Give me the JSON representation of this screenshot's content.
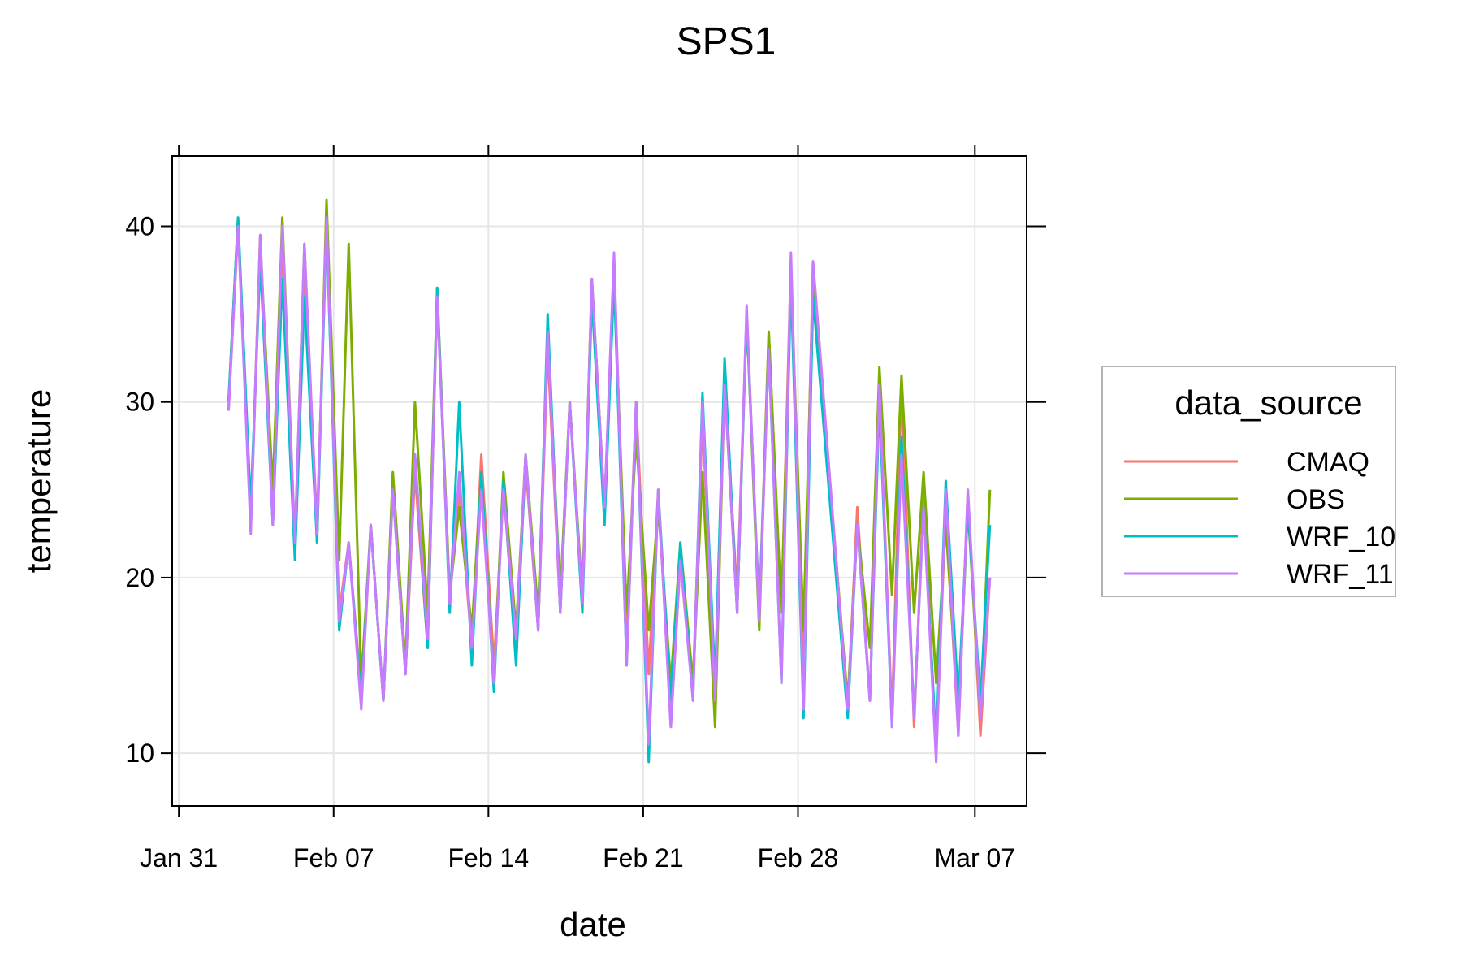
{
  "chart_data": {
    "type": "line",
    "title": "SPS1",
    "xlabel": "date",
    "ylabel": "temperature",
    "x_ticks": [
      "Jan 31",
      "Feb 07",
      "Feb 14",
      "Feb 21",
      "Feb 28",
      "Mar 07"
    ],
    "y_ticks": [
      10,
      20,
      30,
      40
    ],
    "ylim": [
      7,
      44
    ],
    "xlim": [
      "Jan 30",
      "Mar 09"
    ],
    "grid": true,
    "legend": {
      "title": "data_source",
      "placement": "right"
    },
    "series": [
      {
        "name": "CMAQ",
        "color": "#F8766D",
        "points": [
          [
            "Feb 02",
            29.5
          ],
          [
            "Feb 02",
            40
          ],
          [
            "Feb 03",
            23
          ],
          [
            "Feb 03",
            39.5
          ],
          [
            "Feb 04",
            23
          ],
          [
            "Feb 04",
            39
          ],
          [
            "Feb 05",
            22
          ],
          [
            "Feb 05",
            38
          ],
          [
            "Feb 06",
            23
          ],
          [
            "Feb 06",
            40
          ],
          [
            "Feb 07",
            18
          ],
          [
            "Feb 07",
            22
          ],
          [
            "Feb 08",
            13.5
          ],
          [
            "Feb 08",
            23
          ],
          [
            "Feb 09",
            13
          ],
          [
            "Feb 09",
            25
          ],
          [
            "Feb 10",
            14.5
          ],
          [
            "Feb 10",
            26
          ],
          [
            "Feb 11",
            16
          ],
          [
            "Feb 11",
            36
          ],
          [
            "Feb 12",
            19
          ],
          [
            "Feb 12",
            25
          ],
          [
            "Feb 13",
            16
          ],
          [
            "Feb 13",
            27
          ],
          [
            "Feb 14",
            15
          ],
          [
            "Feb 14",
            25
          ],
          [
            "Feb 15",
            16
          ],
          [
            "Feb 15",
            26.5
          ],
          [
            "Feb 16",
            17
          ],
          [
            "Feb 16",
            33
          ],
          [
            "Feb 17",
            18
          ],
          [
            "Feb 17",
            30
          ],
          [
            "Feb 18",
            18.5
          ],
          [
            "Feb 18",
            37
          ],
          [
            "Feb 19",
            24
          ],
          [
            "Feb 19",
            38
          ],
          [
            "Feb 20",
            16
          ],
          [
            "Feb 20",
            30
          ],
          [
            "Feb 21",
            14.5
          ],
          [
            "Feb 21",
            25
          ],
          [
            "Feb 22",
            11.5
          ],
          [
            "Feb 22",
            21
          ],
          [
            "Feb 23",
            14
          ],
          [
            "Feb 23",
            29
          ],
          [
            "Feb 24",
            14
          ],
          [
            "Feb 24",
            31
          ],
          [
            "Feb 25",
            19
          ],
          [
            "Feb 25",
            35
          ],
          [
            "Feb 26",
            18
          ],
          [
            "Feb 26",
            34
          ],
          [
            "Feb 27",
            18
          ],
          [
            "Feb 27",
            38
          ],
          [
            "Feb 28",
            15
          ],
          [
            "Feb 28",
            38
          ],
          [
            "Mar 01",
            12.5
          ],
          [
            "Mar 01",
            24
          ],
          [
            "Mar 02",
            13
          ],
          [
            "Mar 02",
            31
          ],
          [
            "Mar 03",
            12
          ],
          [
            "Mar 03",
            31
          ],
          [
            "Mar 04",
            11.5
          ],
          [
            "Mar 04",
            25
          ],
          [
            "Mar 05",
            10
          ],
          [
            "Mar 05",
            24
          ],
          [
            "Mar 06",
            11
          ],
          [
            "Mar 06",
            25
          ],
          [
            "Mar 07",
            11
          ],
          [
            "Mar 07",
            20
          ]
        ]
      },
      {
        "name": "OBS",
        "color": "#7CAE00",
        "points": [
          [
            "Feb 02",
            30
          ],
          [
            "Feb 02",
            40.5
          ],
          [
            "Feb 03",
            23
          ],
          [
            "Feb 03",
            39
          ],
          [
            "Feb 04",
            25
          ],
          [
            "Feb 04",
            40.5
          ],
          [
            "Feb 05",
            22
          ],
          [
            "Feb 05",
            39
          ],
          [
            "Feb 06",
            22
          ],
          [
            "Feb 06",
            41.5
          ],
          [
            "Feb 07",
            21
          ],
          [
            "Feb 07",
            39
          ],
          [
            "Feb 08",
            14
          ],
          [
            "Feb 08",
            23
          ],
          [
            "Feb 09",
            13
          ],
          [
            "Feb 09",
            26
          ],
          [
            "Feb 10",
            15
          ],
          [
            "Feb 10",
            30
          ],
          [
            "Feb 11",
            18
          ],
          [
            "Feb 11",
            36.5
          ],
          [
            "Feb 12",
            19
          ],
          [
            "Feb 12",
            24
          ],
          [
            "Feb 13",
            17
          ],
          [
            "Feb 13",
            26
          ],
          [
            "Feb 14",
            14
          ],
          [
            "Feb 14",
            26
          ],
          [
            "Feb 15",
            17
          ],
          [
            "Feb 15",
            27
          ],
          [
            "Feb 16",
            18
          ],
          [
            "Feb 16",
            34
          ],
          [
            "Feb 17",
            19
          ],
          [
            "Feb 17",
            30
          ],
          [
            "Feb 18",
            19
          ],
          [
            "Feb 18",
            37
          ],
          [
            "Feb 19",
            24
          ],
          [
            "Feb 19",
            37
          ],
          [
            "Feb 20",
            18
          ],
          [
            "Feb 20",
            28
          ],
          [
            "Feb 21",
            17
          ],
          [
            "Feb 21",
            24
          ],
          [
            "Feb 22",
            14
          ],
          [
            "Feb 22",
            22
          ],
          [
            "Feb 23",
            14
          ],
          [
            "Feb 23",
            26
          ],
          [
            "Feb 24",
            11.5
          ],
          [
            "Feb 24",
            31
          ],
          [
            "Feb 25",
            18
          ],
          [
            "Feb 25",
            35
          ],
          [
            "Feb 26",
            17
          ],
          [
            "Feb 26",
            34
          ],
          [
            "Feb 27",
            18
          ],
          [
            "Feb 27",
            37
          ],
          [
            "Feb 28",
            17
          ],
          [
            "Feb 28",
            37
          ],
          [
            "Mar 01",
            13
          ],
          [
            "Mar 01",
            23
          ],
          [
            "Mar 02",
            16
          ],
          [
            "Mar 02",
            32
          ],
          [
            "Mar 03",
            19
          ],
          [
            "Mar 03",
            31.5
          ],
          [
            "Mar 04",
            18
          ],
          [
            "Mar 04",
            26
          ],
          [
            "Mar 05",
            14
          ],
          [
            "Mar 05",
            23
          ],
          [
            "Mar 06",
            12
          ],
          [
            "Mar 06",
            24
          ],
          [
            "Mar 07",
            12
          ],
          [
            "Mar 07",
            25
          ]
        ]
      },
      {
        "name": "WRF_10",
        "color": "#00BFC4",
        "points": [
          [
            "Feb 02",
            30
          ],
          [
            "Feb 02",
            40.5
          ],
          [
            "Feb 03",
            24
          ],
          [
            "Feb 03",
            38
          ],
          [
            "Feb 04",
            23
          ],
          [
            "Feb 04",
            37
          ],
          [
            "Feb 05",
            21
          ],
          [
            "Feb 05",
            36
          ],
          [
            "Feb 06",
            22
          ],
          [
            "Feb 06",
            40
          ],
          [
            "Feb 07",
            17
          ],
          [
            "Feb 07",
            22
          ],
          [
            "Feb 08",
            13
          ],
          [
            "Feb 08",
            23
          ],
          [
            "Feb 09",
            13
          ],
          [
            "Feb 09",
            25
          ],
          [
            "Feb 10",
            14.5
          ],
          [
            "Feb 10",
            27
          ],
          [
            "Feb 11",
            16
          ],
          [
            "Feb 11",
            36.5
          ],
          [
            "Feb 12",
            18
          ],
          [
            "Feb 12",
            30
          ],
          [
            "Feb 13",
            15
          ],
          [
            "Feb 13",
            26
          ],
          [
            "Feb 14",
            13.5
          ],
          [
            "Feb 14",
            25.5
          ],
          [
            "Feb 15",
            15
          ],
          [
            "Feb 15",
            27
          ],
          [
            "Feb 16",
            17
          ],
          [
            "Feb 16",
            35
          ],
          [
            "Feb 17",
            18
          ],
          [
            "Feb 17",
            30
          ],
          [
            "Feb 18",
            18
          ],
          [
            "Feb 18",
            36
          ],
          [
            "Feb 19",
            23
          ],
          [
            "Feb 19",
            37
          ],
          [
            "Feb 20",
            15
          ],
          [
            "Feb 20",
            30
          ],
          [
            "Feb 21",
            9.5
          ],
          [
            "Feb 21",
            25
          ],
          [
            "Feb 22",
            13
          ],
          [
            "Feb 22",
            22
          ],
          [
            "Feb 23",
            13
          ],
          [
            "Feb 23",
            30.5
          ],
          [
            "Feb 24",
            14
          ],
          [
            "Feb 24",
            32.5
          ],
          [
            "Feb 25",
            18
          ],
          [
            "Feb 25",
            35
          ],
          [
            "Feb 26",
            18
          ],
          [
            "Feb 26",
            33
          ],
          [
            "Feb 27",
            14
          ],
          [
            "Feb 27",
            37
          ],
          [
            "Feb 28",
            12
          ],
          [
            "Feb 28",
            36
          ],
          [
            "Mar 01",
            12
          ],
          [
            "Mar 01",
            23
          ],
          [
            "Mar 02",
            13
          ],
          [
            "Mar 02",
            30
          ],
          [
            "Mar 03",
            11.5
          ],
          [
            "Mar 03",
            28
          ],
          [
            "Mar 04",
            12
          ],
          [
            "Mar 04",
            24
          ],
          [
            "Mar 05",
            10.5
          ],
          [
            "Mar 05",
            25.5
          ],
          [
            "Mar 06",
            13
          ],
          [
            "Mar 06",
            24
          ],
          [
            "Mar 07",
            13
          ],
          [
            "Mar 07",
            23
          ]
        ]
      },
      {
        "name": "WRF_11",
        "color": "#C77CFF",
        "points": [
          [
            "Feb 02",
            29.5
          ],
          [
            "Feb 02",
            40
          ],
          [
            "Feb 03",
            22.5
          ],
          [
            "Feb 03",
            39.5
          ],
          [
            "Feb 04",
            23
          ],
          [
            "Feb 04",
            40
          ],
          [
            "Feb 05",
            22
          ],
          [
            "Feb 05",
            39
          ],
          [
            "Feb 06",
            22.5
          ],
          [
            "Feb 06",
            40.5
          ],
          [
            "Feb 07",
            17.5
          ],
          [
            "Feb 07",
            22
          ],
          [
            "Feb 08",
            12.5
          ],
          [
            "Feb 08",
            23
          ],
          [
            "Feb 09",
            13
          ],
          [
            "Feb 09",
            25
          ],
          [
            "Feb 10",
            14.5
          ],
          [
            "Feb 10",
            27
          ],
          [
            "Feb 11",
            16.5
          ],
          [
            "Feb 11",
            36
          ],
          [
            "Feb 12",
            18.5
          ],
          [
            "Feb 12",
            26
          ],
          [
            "Feb 13",
            16
          ],
          [
            "Feb 13",
            25
          ],
          [
            "Feb 14",
            14
          ],
          [
            "Feb 14",
            25
          ],
          [
            "Feb 15",
            16.5
          ],
          [
            "Feb 15",
            27
          ],
          [
            "Feb 16",
            17
          ],
          [
            "Feb 16",
            34
          ],
          [
            "Feb 17",
            18
          ],
          [
            "Feb 17",
            30
          ],
          [
            "Feb 18",
            18.5
          ],
          [
            "Feb 18",
            37
          ],
          [
            "Feb 19",
            24
          ],
          [
            "Feb 19",
            38.5
          ],
          [
            "Feb 20",
            15
          ],
          [
            "Feb 20",
            30
          ],
          [
            "Feb 21",
            10.5
          ],
          [
            "Feb 21",
            25
          ],
          [
            "Feb 22",
            11.5
          ],
          [
            "Feb 22",
            21
          ],
          [
            "Feb 23",
            13
          ],
          [
            "Feb 23",
            30
          ],
          [
            "Feb 24",
            13
          ],
          [
            "Feb 24",
            31
          ],
          [
            "Feb 25",
            18
          ],
          [
            "Feb 25",
            35.5
          ],
          [
            "Feb 26",
            17.5
          ],
          [
            "Feb 26",
            33
          ],
          [
            "Feb 27",
            14
          ],
          [
            "Feb 27",
            38.5
          ],
          [
            "Feb 28",
            12.5
          ],
          [
            "Feb 28",
            38
          ],
          [
            "Mar 01",
            12.5
          ],
          [
            "Mar 01",
            23
          ],
          [
            "Mar 02",
            13
          ],
          [
            "Mar 02",
            31
          ],
          [
            "Mar 03",
            11.5
          ],
          [
            "Mar 03",
            27
          ],
          [
            "Mar 04",
            12
          ],
          [
            "Mar 04",
            24
          ],
          [
            "Mar 05",
            9.5
          ],
          [
            "Mar 05",
            25
          ],
          [
            "Mar 06",
            11
          ],
          [
            "Mar 06",
            25
          ],
          [
            "Mar 07",
            12
          ],
          [
            "Mar 07",
            20
          ]
        ]
      }
    ]
  }
}
